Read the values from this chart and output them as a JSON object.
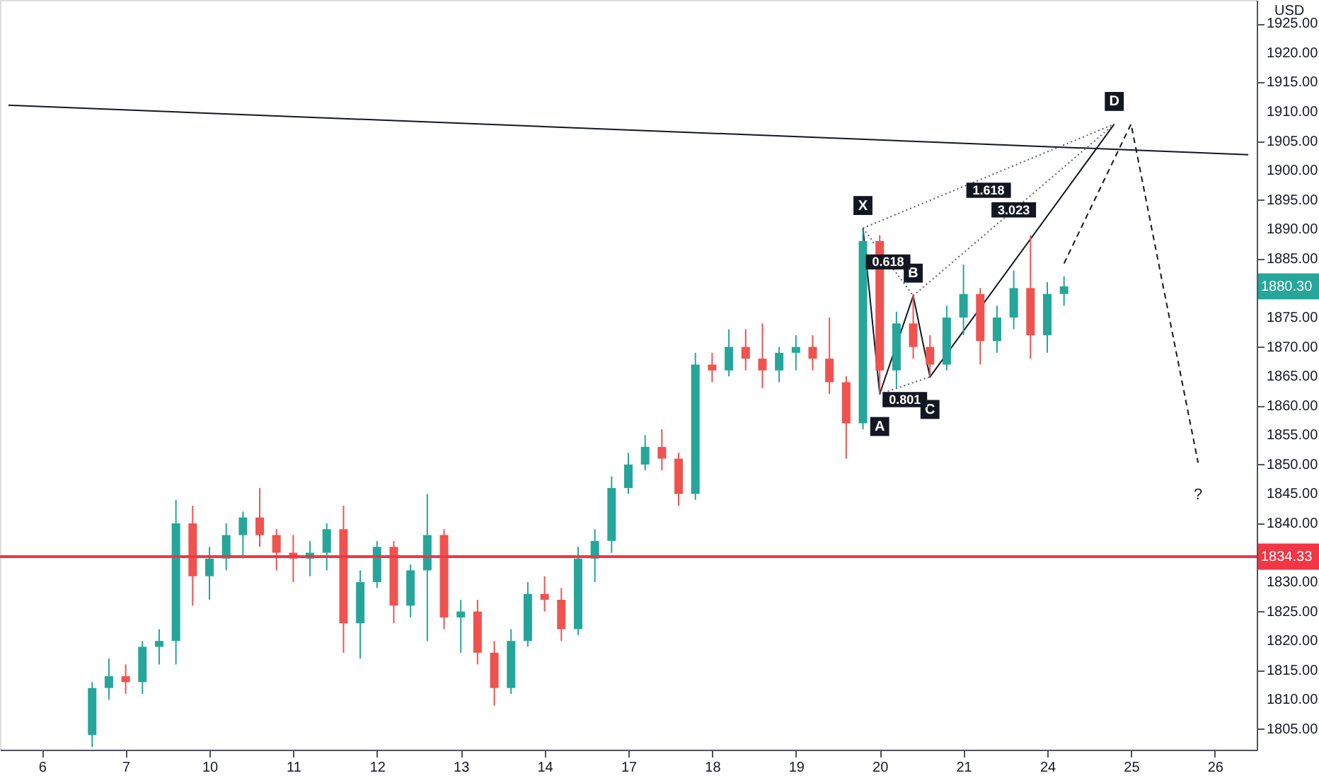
{
  "chart_data": {
    "type": "candlestick",
    "ylabel": "USD",
    "categories": [
      null,
      null,
      "6",
      null,
      null,
      null,
      null,
      "7",
      null,
      null,
      null,
      null,
      "10",
      null,
      null,
      null,
      null,
      "11",
      null,
      null,
      null,
      null,
      "12",
      null,
      null,
      null,
      null,
      "13",
      null,
      null,
      null,
      null,
      "14",
      null,
      null,
      null,
      null,
      "17",
      null,
      null,
      null,
      null,
      "18",
      null,
      null,
      null,
      null,
      "19",
      null,
      null,
      null,
      null,
      "20",
      null,
      null,
      null,
      null,
      "21",
      null,
      null,
      null,
      null,
      "24",
      null,
      null,
      null,
      null,
      "25",
      null,
      null,
      null,
      null,
      "26",
      null,
      null
    ],
    "ohlc": [
      null,
      null,
      null,
      null,
      null,
      [
        1804,
        1813,
        1802,
        1812
      ],
      [
        1812,
        1817,
        1810,
        1814
      ],
      [
        1814,
        1816,
        1811,
        1813
      ],
      [
        1813,
        1820,
        1811,
        1819
      ],
      [
        1819,
        1822,
        1816,
        1820
      ],
      [
        1820,
        1844,
        1816,
        1840
      ],
      [
        1840,
        1843,
        1826,
        1831
      ],
      [
        1831,
        1836,
        1827,
        1834
      ],
      [
        1834,
        1840,
        1832,
        1838
      ],
      [
        1838,
        1842,
        1834,
        1841
      ],
      [
        1841,
        1846,
        1836,
        1838
      ],
      [
        1838,
        1839,
        1832,
        1835
      ],
      [
        1835,
        1838,
        1830,
        1834
      ],
      [
        1834,
        1837,
        1831,
        1835
      ],
      [
        1835,
        1840,
        1832,
        1839
      ],
      [
        1839,
        1843,
        1818,
        1823
      ],
      [
        1823,
        1832,
        1817,
        1830
      ],
      [
        1830,
        1837,
        1829,
        1836
      ],
      [
        1836,
        1837,
        1823,
        1826
      ],
      [
        1826,
        1833,
        1824,
        1832
      ],
      [
        1832,
        1845,
        1820,
        1838
      ],
      [
        1838,
        1839,
        1822,
        1824
      ],
      [
        1824,
        1827,
        1818,
        1825
      ],
      [
        1825,
        1827,
        1816,
        1818
      ],
      [
        1818,
        1820,
        1809,
        1812
      ],
      [
        1812,
        1822,
        1811,
        1820
      ],
      [
        1820,
        1830,
        1819,
        1828
      ],
      [
        1828,
        1831,
        1825,
        1827
      ],
      [
        1827,
        1829,
        1820,
        1822
      ],
      [
        1822,
        1836,
        1821,
        1834
      ],
      [
        1834,
        1839,
        1830,
        1837
      ],
      [
        1837,
        1848,
        1835,
        1846
      ],
      [
        1846,
        1852,
        1845,
        1850
      ],
      [
        1850,
        1855,
        1849,
        1853
      ],
      [
        1853,
        1856,
        1849,
        1851
      ],
      [
        1851,
        1852,
        1843,
        1845
      ],
      [
        1845,
        1869,
        1844,
        1867
      ],
      [
        1867,
        1869,
        1864,
        1866
      ],
      [
        1866,
        1873,
        1865,
        1870
      ],
      [
        1870,
        1873,
        1866,
        1868
      ],
      [
        1868,
        1874,
        1863,
        1866
      ],
      [
        1866,
        1870,
        1864,
        1869
      ],
      [
        1869,
        1872,
        1866,
        1870
      ],
      [
        1870,
        1872,
        1866,
        1868
      ],
      [
        1868,
        1875,
        1862,
        1864
      ],
      [
        1864,
        1865,
        1851,
        1857
      ],
      [
        1857,
        1890,
        1856,
        1888
      ],
      [
        1888,
        1889,
        1862,
        1866
      ],
      [
        1866,
        1876,
        1863,
        1874
      ],
      [
        1874,
        1879,
        1868,
        1870
      ],
      [
        1870,
        1872,
        1865,
        1867
      ],
      [
        1867,
        1877,
        1866,
        1875
      ],
      [
        1875,
        1884,
        1872,
        1879
      ],
      [
        1879,
        1880,
        1867,
        1871
      ],
      [
        1871,
        1877,
        1869,
        1875
      ],
      [
        1875,
        1883,
        1873,
        1880
      ],
      [
        1880,
        1889,
        1868,
        1872
      ],
      [
        1872,
        1881,
        1869,
        1879
      ],
      [
        1879,
        1882,
        1877,
        1880.3
      ],
      null,
      null,
      null,
      null,
      null,
      null,
      null,
      null,
      null,
      null,
      null
    ],
    "colors": [
      null,
      null,
      null,
      null,
      null,
      "#26a69a",
      "#26a69a",
      "#ef5350",
      "#26a69a",
      "#26a69a",
      "#26a69a",
      "#ef5350",
      "#26a69a",
      "#26a69a",
      "#26a69a",
      "#ef5350",
      "#ef5350",
      "#ef5350",
      "#26a69a",
      "#26a69a",
      "#ef5350",
      "#26a69a",
      "#26a69a",
      "#ef5350",
      "#26a69a",
      "#26a69a",
      "#ef5350",
      "#26a69a",
      "#ef5350",
      "#ef5350",
      "#26a69a",
      "#26a69a",
      "#ef5350",
      "#ef5350",
      "#26a69a",
      "#26a69a",
      "#26a69a",
      "#26a69a",
      "#26a69a",
      "#ef5350",
      "#ef5350",
      "#26a69a",
      "#ef5350",
      "#26a69a",
      "#ef5350",
      "#ef5350",
      "#26a69a",
      "#26a69a",
      "#ef5350",
      "#ef5350",
      "#ef5350",
      "#26a69a",
      "#ef5350",
      "#26a69a",
      "#ef5350",
      "#ef5350",
      "#26a69a",
      "#26a69a",
      "#ef5350",
      "#26a69a",
      "#26a69a",
      "#ef5350",
      "#26a69a",
      "#26a69a",
      null,
      null,
      null,
      null,
      null,
      null,
      null,
      null,
      null,
      null,
      null
    ],
    "value_labels": [
      null,
      null,
      null,
      null,
      null,
      null,
      null,
      null,
      null,
      null,
      null,
      null,
      null,
      null,
      null,
      null,
      null,
      null,
      null,
      null,
      null,
      null,
      null,
      null,
      null,
      null,
      null,
      null,
      null,
      null,
      null,
      null,
      null,
      null,
      null,
      null,
      null,
      null,
      null,
      null,
      null,
      null,
      null,
      null,
      null,
      null,
      null,
      null,
      null,
      null,
      null,
      null,
      null,
      null,
      null,
      null,
      null,
      null,
      null,
      null,
      null,
      null,
      null,
      "1880.30",
      null,
      null,
      null,
      null,
      null,
      null,
      null,
      null,
      null,
      null,
      null
    ],
    "series": [
      {
        "type": "line",
        "color": "#131722",
        "line_style": "solid",
        "values": [
          1911.1,
          null,
          null,
          null,
          null,
          null,
          null,
          null,
          null,
          null,
          null,
          null,
          null,
          null,
          null,
          null,
          null,
          null,
          null,
          null,
          null,
          null,
          null,
          null,
          null,
          null,
          null,
          null,
          null,
          null,
          null,
          null,
          null,
          null,
          null,
          null,
          null,
          null,
          null,
          null,
          null,
          null,
          null,
          null,
          null,
          null,
          null,
          null,
          null,
          null,
          null,
          null,
          null,
          null,
          null,
          null,
          null,
          null,
          null,
          null,
          null,
          null,
          null,
          null,
          null,
          null,
          null,
          null,
          null,
          null,
          null,
          null,
          null,
          null,
          1902.7
        ]
      },
      {
        "type": "line",
        "color": "#131722",
        "line_style": "solid",
        "values": [
          null,
          null,
          null,
          null,
          null,
          null,
          null,
          null,
          null,
          null,
          null,
          null,
          null,
          null,
          null,
          null,
          null,
          null,
          null,
          null,
          null,
          null,
          null,
          null,
          null,
          null,
          null,
          null,
          null,
          null,
          null,
          null,
          null,
          null,
          null,
          null,
          null,
          null,
          null,
          null,
          null,
          null,
          null,
          null,
          null,
          null,
          null,
          null,
          null,
          null,
          null,
          1890.2,
          1862,
          null,
          1878.7,
          1864.9,
          null,
          null,
          null,
          null,
          null,
          null,
          null,
          null,
          null,
          null,
          1907.9,
          null,
          null,
          null,
          null,
          null,
          null,
          null,
          null
        ],
        "value_labels": [
          null,
          null,
          null,
          null,
          null,
          null,
          null,
          null,
          null,
          null,
          null,
          null,
          null,
          null,
          null,
          null,
          null,
          null,
          null,
          null,
          null,
          null,
          null,
          null,
          null,
          null,
          null,
          null,
          null,
          null,
          null,
          null,
          null,
          null,
          null,
          null,
          null,
          null,
          null,
          null,
          null,
          null,
          null,
          null,
          null,
          null,
          null,
          null,
          null,
          null,
          null,
          "X",
          "A",
          null,
          "B",
          "C",
          null,
          null,
          null,
          null,
          null,
          null,
          null,
          null,
          null,
          null,
          "D",
          null,
          null,
          null,
          null,
          null,
          null,
          null,
          null
        ]
      },
      {
        "type": "line",
        "name": "0.618",
        "color": "#5d606b",
        "line_style": "dotted",
        "values": [
          null,
          null,
          null,
          null,
          null,
          null,
          null,
          null,
          null,
          null,
          null,
          null,
          null,
          null,
          null,
          null,
          null,
          null,
          null,
          null,
          null,
          null,
          null,
          null,
          null,
          null,
          null,
          null,
          null,
          null,
          null,
          null,
          null,
          null,
          null,
          null,
          null,
          null,
          null,
          null,
          null,
          null,
          null,
          null,
          null,
          null,
          null,
          null,
          null,
          null,
          null,
          1890.2,
          null,
          null,
          1878.7,
          null,
          null,
          null,
          null,
          null,
          null,
          null,
          null,
          null,
          null,
          null,
          null,
          null,
          null,
          null,
          null,
          null,
          null,
          null,
          null
        ]
      },
      {
        "type": "line",
        "name": "0.801",
        "color": "#5d606b",
        "line_style": "dotted",
        "values": [
          null,
          null,
          null,
          null,
          null,
          null,
          null,
          null,
          null,
          null,
          null,
          null,
          null,
          null,
          null,
          null,
          null,
          null,
          null,
          null,
          null,
          null,
          null,
          null,
          null,
          null,
          null,
          null,
          null,
          null,
          null,
          null,
          null,
          null,
          null,
          null,
          null,
          null,
          null,
          null,
          null,
          null,
          null,
          null,
          null,
          null,
          null,
          null,
          null,
          null,
          null,
          null,
          1862,
          null,
          null,
          1864.9,
          null,
          null,
          null,
          null,
          null,
          null,
          null,
          null,
          null,
          null,
          null,
          null,
          null,
          null,
          null,
          null,
          null,
          null,
          null
        ]
      },
      {
        "type": "line",
        "name": "1.618",
        "color": "#5d606b",
        "line_style": "dotted",
        "values": [
          null,
          null,
          null,
          null,
          null,
          null,
          null,
          null,
          null,
          null,
          null,
          null,
          null,
          null,
          null,
          null,
          null,
          null,
          null,
          null,
          null,
          null,
          null,
          null,
          null,
          null,
          null,
          null,
          null,
          null,
          null,
          null,
          null,
          null,
          null,
          null,
          null,
          null,
          null,
          null,
          null,
          null,
          null,
          null,
          null,
          null,
          null,
          null,
          null,
          null,
          null,
          1890.2,
          null,
          null,
          null,
          null,
          null,
          null,
          null,
          null,
          null,
          null,
          null,
          null,
          null,
          null,
          1907.9,
          null,
          null,
          null,
          null,
          null,
          null,
          null,
          null
        ]
      },
      {
        "type": "line",
        "name": "3.023",
        "color": "#5d606b",
        "line_style": "dotted",
        "values": [
          null,
          null,
          null,
          null,
          null,
          null,
          null,
          null,
          null,
          null,
          null,
          null,
          null,
          null,
          null,
          null,
          null,
          null,
          null,
          null,
          null,
          null,
          null,
          null,
          null,
          null,
          null,
          null,
          null,
          null,
          null,
          null,
          null,
          null,
          null,
          null,
          null,
          null,
          null,
          null,
          null,
          null,
          null,
          null,
          null,
          null,
          null,
          null,
          null,
          null,
          null,
          null,
          null,
          null,
          1878.7,
          null,
          null,
          null,
          null,
          null,
          null,
          null,
          null,
          null,
          null,
          null,
          1907.9,
          null,
          null,
          null,
          null,
          null,
          null,
          null,
          null
        ]
      },
      {
        "type": "line",
        "color": "#131722",
        "line_style": "dashed",
        "values": [
          null,
          null,
          null,
          null,
          null,
          null,
          null,
          null,
          null,
          null,
          null,
          null,
          null,
          null,
          null,
          null,
          null,
          null,
          null,
          null,
          null,
          null,
          null,
          null,
          null,
          null,
          null,
          null,
          null,
          null,
          null,
          null,
          null,
          null,
          null,
          null,
          null,
          null,
          null,
          null,
          null,
          null,
          null,
          null,
          null,
          null,
          null,
          null,
          null,
          null,
          null,
          null,
          null,
          null,
          null,
          null,
          null,
          null,
          null,
          null,
          null,
          null,
          null,
          1884.2,
          null,
          null,
          null,
          1907.9,
          null,
          null,
          null,
          1850.3,
          null,
          null,
          null
        ],
        "value_labels": [
          null,
          null,
          null,
          null,
          null,
          null,
          null,
          null,
          null,
          null,
          null,
          null,
          null,
          null,
          null,
          null,
          null,
          null,
          null,
          null,
          null,
          null,
          null,
          null,
          null,
          null,
          null,
          null,
          null,
          null,
          null,
          null,
          null,
          null,
          null,
          null,
          null,
          null,
          null,
          null,
          null,
          null,
          null,
          null,
          null,
          null,
          null,
          null,
          null,
          null,
          null,
          null,
          null,
          null,
          null,
          null,
          null,
          null,
          null,
          null,
          null,
          null,
          null,
          null,
          null,
          null,
          null,
          null,
          null,
          null,
          null,
          "?",
          null,
          null,
          null
        ]
      }
    ],
    "ref_lines": [
      {
        "axis": "y",
        "value": 1834.33,
        "label": "1834.33",
        "color": "#f23645"
      }
    ],
    "ylim": [
      1801.5,
      1929
    ],
    "yticks": [
      {
        "value": 1805,
        "label": "1805.00"
      },
      {
        "value": 1810,
        "label": "1810.00"
      },
      {
        "value": 1815,
        "label": "1815.00"
      },
      {
        "value": 1820,
        "label": "1820.00"
      },
      {
        "value": 1825,
        "label": "1825.00"
      },
      {
        "value": 1830,
        "label": "1830.00"
      },
      {
        "value": 1840,
        "label": "1840.00"
      },
      {
        "value": 1845,
        "label": "1845.00"
      },
      {
        "value": 1850,
        "label": "1850.00"
      },
      {
        "value": 1855,
        "label": "1855.00"
      },
      {
        "value": 1860,
        "label": "1860.00"
      },
      {
        "value": 1865,
        "label": "1865.00"
      },
      {
        "value": 1870,
        "label": "1870.00"
      },
      {
        "value": 1875,
        "label": "1875.00"
      },
      {
        "value": 1885,
        "label": "1885.00"
      },
      {
        "value": 1890,
        "label": "1890.00"
      },
      {
        "value": 1895,
        "label": "1895.00"
      },
      {
        "value": 1900,
        "label": "1900.00"
      },
      {
        "value": 1905,
        "label": "1905.00"
      },
      {
        "value": 1910,
        "label": "1910.00"
      },
      {
        "value": 1915,
        "label": "1915.00"
      },
      {
        "value": 1920,
        "label": "1920.00"
      },
      {
        "value": 1925,
        "label": "1925.00"
      }
    ],
    "grid": false
  }
}
